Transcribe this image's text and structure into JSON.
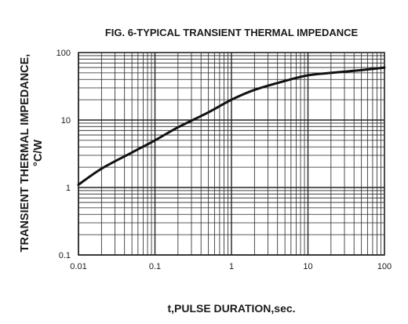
{
  "chart_data": {
    "type": "line",
    "title": "FIG. 6-TYPICAL TRANSIENT THERMAL IMPEDANCE",
    "xlabel": "t,PULSE DURATION,sec.",
    "ylabel_line1": "TRANSIENT THERMAL IMPEDANCE,",
    "ylabel_line2": "°C/W",
    "x_scale": "log",
    "y_scale": "log",
    "xlim": [
      0.01,
      100
    ],
    "ylim": [
      0.1,
      100
    ],
    "x_ticks": [
      "0.01",
      "0.1",
      "1",
      "10",
      "100"
    ],
    "y_ticks": [
      "0.1",
      "1",
      "10",
      "100"
    ],
    "grid": true,
    "series": [
      {
        "x": [
          0.01,
          0.02,
          0.05,
          0.1,
          0.2,
          0.5,
          1,
          2,
          5,
          10,
          20,
          50,
          100
        ],
        "y": [
          1.1,
          1.9,
          3.3,
          5.0,
          7.8,
          13,
          20,
          28,
          38,
          46,
          50,
          55,
          60
        ]
      }
    ],
    "colors": {
      "line": "#111111",
      "grid": "#222222",
      "text": "#1a1a1a"
    }
  }
}
